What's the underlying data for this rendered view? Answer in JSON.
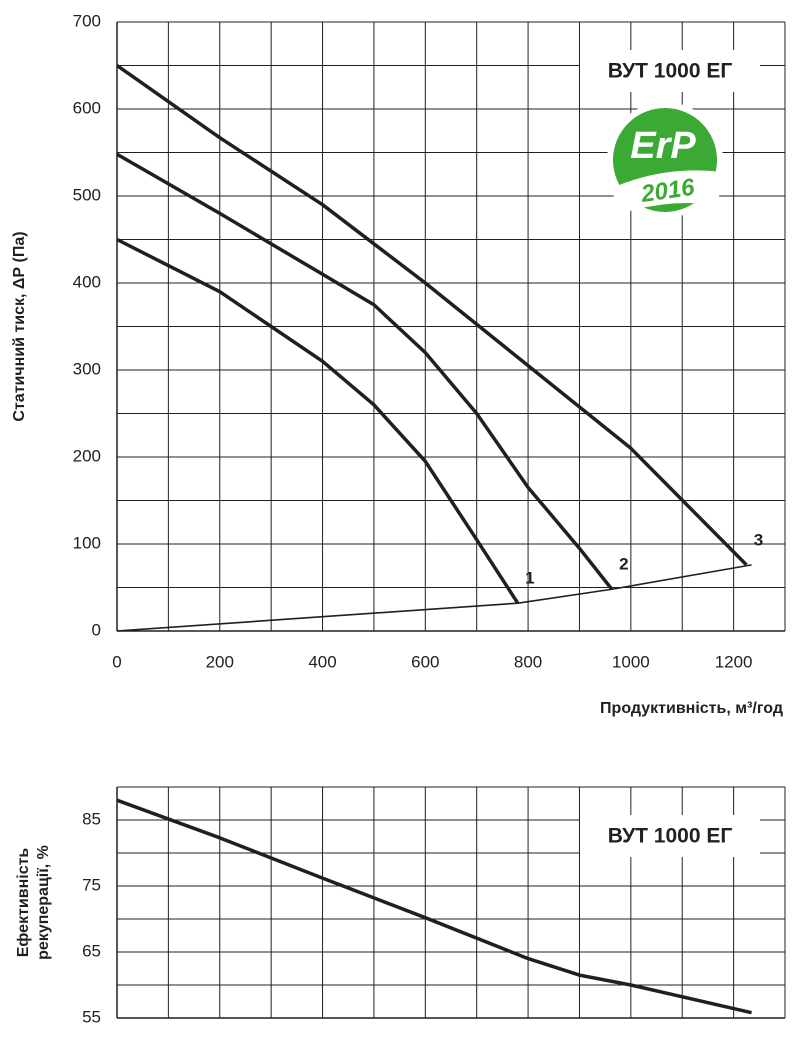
{
  "chart_data": [
    {
      "type": "line",
      "title": "ВУТ 1000 ЕГ",
      "xlabel": "Продуктивність, м³/год",
      "ylabel": "Статичний тиск, ΔР (Па)",
      "badge": {
        "text": "ErP",
        "year": "2016"
      },
      "xlim": [
        0,
        1300
      ],
      "ylim": [
        0,
        700
      ],
      "xticks": [
        0,
        200,
        400,
        600,
        800,
        1000,
        1200
      ],
      "x_minor_ticks": [
        100,
        300,
        500,
        700,
        900,
        1100,
        1300
      ],
      "yticks": [
        0,
        100,
        200,
        300,
        400,
        500,
        600,
        700
      ],
      "y_minor_ticks": [
        50,
        150,
        250,
        350,
        450,
        550,
        650
      ],
      "grid": true,
      "series": [
        {
          "name": "1",
          "color": "#231f20",
          "x": [
            0,
            200,
            300,
            400,
            500,
            600,
            650,
            700,
            780
          ],
          "values": [
            450,
            390,
            350,
            310,
            260,
            195,
            150,
            105,
            32
          ]
        },
        {
          "name": "2",
          "color": "#231f20",
          "x": [
            0,
            200,
            400,
            500,
            600,
            700,
            800,
            900,
            963
          ],
          "values": [
            548,
            480,
            410,
            375,
            320,
            250,
            165,
            95,
            48
          ]
        },
        {
          "name": "3",
          "color": "#231f20",
          "x": [
            0,
            200,
            400,
            600,
            800,
            1000,
            1225
          ],
          "values": [
            650,
            567,
            490,
            400,
            305,
            210,
            76
          ]
        }
      ],
      "system_line": {
        "color": "#231f20",
        "x": [
          0,
          780,
          963,
          1235
        ],
        "values": [
          0,
          32,
          48,
          76
        ]
      }
    },
    {
      "type": "line",
      "title": "ВУТ 1000 ЕГ",
      "ylabel": [
        "Ефективність",
        "рекуперації, %"
      ],
      "xlim": [
        0,
        1300
      ],
      "ylim": [
        55,
        90
      ],
      "xgrid": [
        0,
        100,
        200,
        300,
        400,
        500,
        600,
        700,
        800,
        900,
        1000,
        1100,
        1200,
        1300
      ],
      "yticks": [
        55,
        65,
        75,
        85
      ],
      "y_minor_ticks": [
        60,
        70,
        80,
        90
      ],
      "grid": true,
      "series": [
        {
          "color": "#231f20",
          "x": [
            0,
            200,
            400,
            600,
            800,
            900,
            1000,
            1235
          ],
          "values": [
            88,
            82.3,
            76.2,
            70.2,
            64,
            61.5,
            60,
            55.8
          ]
        }
      ]
    }
  ]
}
